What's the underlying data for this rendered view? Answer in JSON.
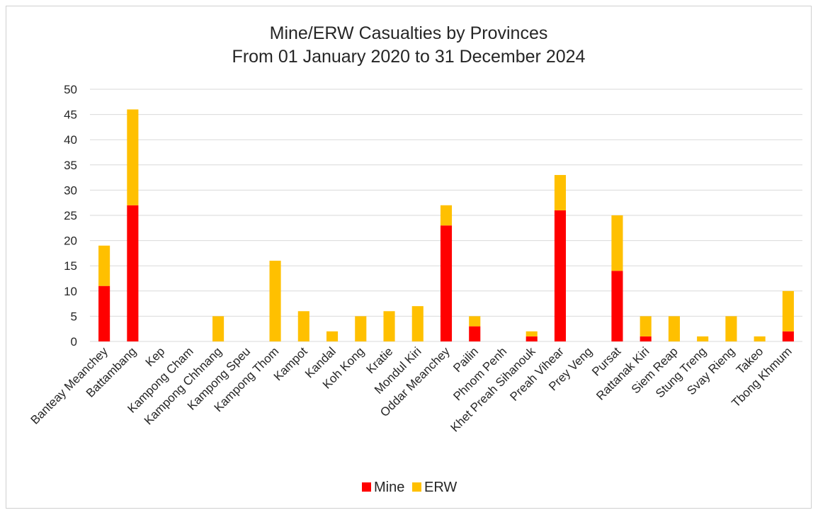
{
  "colors": {
    "mine": "#ff0000",
    "erw": "#ffc000",
    "grid": "#d9d9d9",
    "text": "#262626"
  },
  "chart_data": {
    "type": "bar",
    "stacked": true,
    "title": "Mine/ERW Casualties by Provinces",
    "subtitle": "From 01 January 2020 to 31 December 2024",
    "xlabel": "",
    "ylabel": "",
    "ylim": [
      0,
      50
    ],
    "yticks": [
      "0",
      "5",
      "10",
      "15",
      "20",
      "25",
      "30",
      "35",
      "40",
      "45",
      "50"
    ],
    "grid": true,
    "legend_position": "bottom",
    "categories": [
      "Banteay Meanchey",
      "Battambang",
      "Kep",
      "Kampong Cham",
      "Kampong Chhnang",
      "Kampong Speu",
      "Kampong Thom",
      "Kampot",
      "Kandal",
      "Koh Kong",
      "Kratie",
      "Mondul Kiri",
      "Oddar Meanchey",
      "Pailin",
      "Phnom Penh",
      "Khet Preah Sihanouk",
      "Preah Vihear",
      "Prey Veng",
      "Pursat",
      "Rattanak Kiri",
      "Siem Reap",
      "Stung Treng",
      "Svay Rieng",
      "Takeo",
      "Tbong Khmum"
    ],
    "series": [
      {
        "name": "Mine",
        "color": "#ff0000",
        "values": [
          11,
          27,
          0,
          0,
          0,
          0,
          0,
          0,
          0,
          0,
          0,
          0,
          23,
          3,
          0,
          1,
          26,
          0,
          14,
          1,
          0,
          0,
          0,
          0,
          2
        ]
      },
      {
        "name": "ERW",
        "color": "#ffc000",
        "values": [
          8,
          19,
          0,
          0,
          5,
          0,
          16,
          6,
          2,
          5,
          6,
          7,
          4,
          2,
          0,
          1,
          7,
          0,
          11,
          4,
          5,
          1,
          5,
          1,
          8
        ]
      }
    ]
  }
}
